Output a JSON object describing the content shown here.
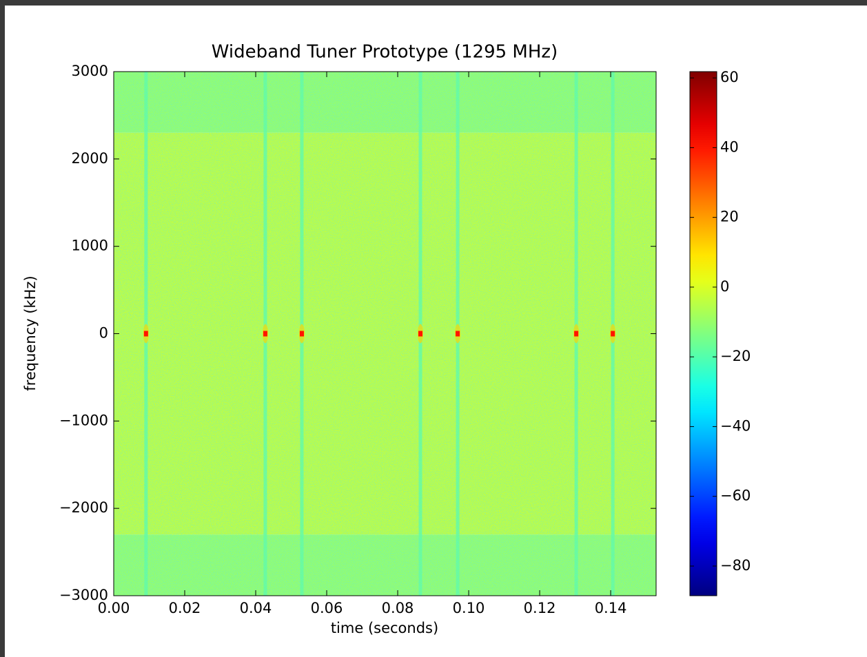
{
  "chart_data": {
    "type": "spectrogram",
    "title": "Wideband Tuner Prototype (1295 MHz)",
    "xlabel": "time (seconds)",
    "ylabel": "frequency (kHz)",
    "colormap": "jet",
    "xlim": [
      0,
      0.1528
    ],
    "xticks": [
      {
        "value": 0,
        "label": "0.00"
      },
      0.02,
      0.04,
      0.06,
      0.08,
      {
        "value": 0.1,
        "label": "0.10"
      },
      0.12,
      0.14
    ],
    "ylim": [
      -3000,
      3000
    ],
    "yticks": [
      {
        "value": -3000,
        "label": "−3000"
      },
      {
        "value": -2000,
        "label": "−2000"
      },
      {
        "value": -1000,
        "label": "−1000"
      },
      0,
      1000,
      2000,
      3000
    ],
    "clim": [
      -88.5,
      61.8
    ],
    "cticks": [
      {
        "value": -80,
        "label": "−80"
      },
      {
        "value": -60,
        "label": "−60"
      },
      {
        "value": -40,
        "label": "−40"
      },
      {
        "value": -20,
        "label": "−20"
      },
      0,
      20,
      40,
      60
    ],
    "bands": [
      {
        "y": [
          2300,
          3000
        ],
        "level": -9.6
      },
      {
        "y": [
          -2300,
          2300
        ],
        "level": -3
      },
      {
        "y": [
          -3000,
          -2300
        ],
        "level": -9.6
      }
    ],
    "pulses": {
      "x": [
        0.0091,
        0.0427,
        0.053,
        0.0864,
        0.0969,
        0.1303,
        0.1406
      ],
      "y": 0,
      "values": [
        40,
        40,
        40,
        40,
        40,
        40,
        40
      ]
    },
    "stripe_level": -17
  }
}
